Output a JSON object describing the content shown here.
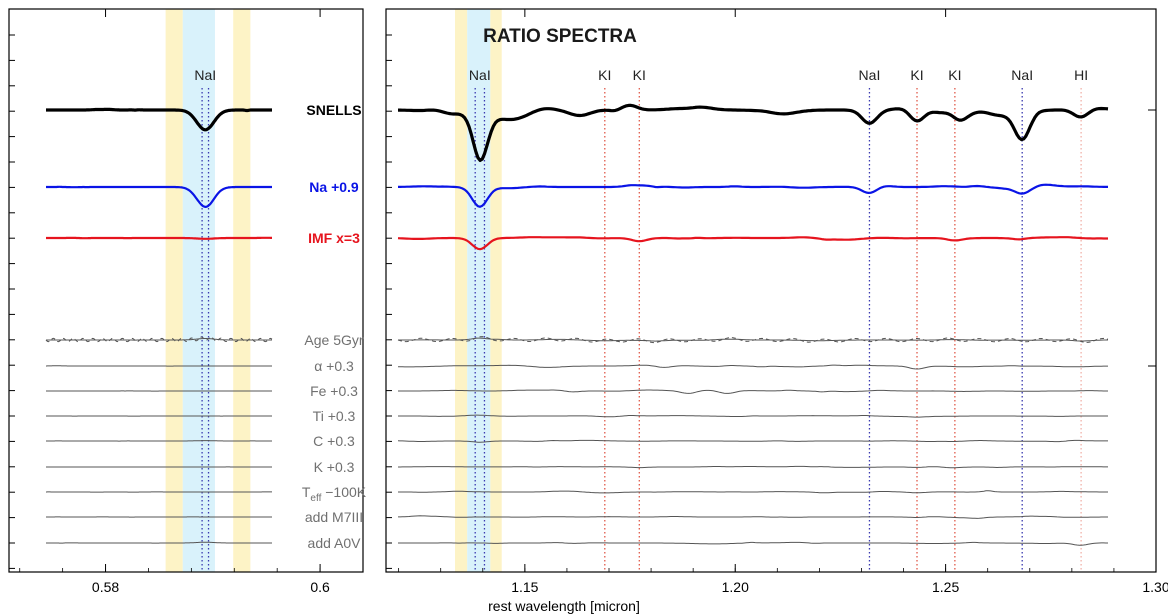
{
  "chart_data": [
    {
      "type": "line",
      "panel": "left",
      "x_ticks": [
        "0.58",
        "0.6"
      ],
      "x_tick_values": [
        0.58,
        0.6
      ],
      "xlim": [
        0.571,
        0.604
      ],
      "shaded_bands": [
        {
          "x": [
            0.5856,
            0.5872
          ],
          "color": "#fdf3c6"
        },
        {
          "x": [
            0.5872,
            0.5902
          ],
          "color": "#d9f2fb"
        },
        {
          "x": [
            0.5919,
            0.5935
          ],
          "color": "#fdf3c6"
        }
      ],
      "line_markers": [
        {
          "x": 0.589,
          "color": "#3a3ab0"
        },
        {
          "x": 0.5896,
          "color": "#3a3ab0"
        }
      ],
      "feature_labels": [
        {
          "text": "NaI",
          "x": 0.5893
        }
      ]
    },
    {
      "type": "line",
      "panel": "right",
      "title": "RATIO SPECTRA",
      "xlabel": "rest wavelength [micron]",
      "x_ticks": [
        "1.15",
        "1.20",
        "1.25",
        "1.30"
      ],
      "x_tick_values": [
        1.15,
        1.2,
        1.25,
        1.3
      ],
      "xlim": [
        1.117,
        1.3
      ],
      "shaded_bands": [
        {
          "x": [
            1.1334,
            1.1363
          ],
          "color": "#fdf3c6"
        },
        {
          "x": [
            1.1363,
            1.1418
          ],
          "color": "#d9f2fb"
        },
        {
          "x": [
            1.1418,
            1.1445
          ],
          "color": "#fdf3c6"
        }
      ],
      "line_markers": [
        {
          "x": 1.1382,
          "color": "#3a3ab0"
        },
        {
          "x": 1.1404,
          "color": "#3a3ab0"
        },
        {
          "x": 1.169,
          "color": "#e05a4a"
        },
        {
          "x": 1.1772,
          "color": "#e05a4a"
        },
        {
          "x": 1.2319,
          "color": "#3a3ab0"
        },
        {
          "x": 1.2432,
          "color": "#e05a4a"
        },
        {
          "x": 1.2522,
          "color": "#e05a4a"
        },
        {
          "x": 1.2682,
          "color": "#3a3ab0"
        },
        {
          "x": 1.2822,
          "color": "#f0b0a8"
        }
      ],
      "feature_labels": [
        {
          "text": "NaI",
          "x": 1.1393
        },
        {
          "text": "KI",
          "x": 1.169
        },
        {
          "text": "KI",
          "x": 1.1772
        },
        {
          "text": "NaI",
          "x": 1.2319
        },
        {
          "text": "KI",
          "x": 1.2432
        },
        {
          "text": "KI",
          "x": 1.2522
        },
        {
          "text": "NaI",
          "x": 1.2682
        },
        {
          "text": "HI",
          "x": 1.2822
        }
      ]
    }
  ],
  "series": [
    {
      "name": "SNELLS",
      "color": "#000000",
      "width": 3.2,
      "left_features": [
        {
          "x": 0.5893,
          "depth": 0.9
        }
      ],
      "right_features": [
        {
          "x": 1.1393,
          "depth": 2.2
        },
        {
          "x": 1.2319,
          "depth": 0.6
        },
        {
          "x": 1.2432,
          "depth": 0.7
        },
        {
          "x": 1.2682,
          "depth": 1.3
        },
        {
          "x": 1.2822,
          "depth": 0.4
        }
      ]
    },
    {
      "name": "Na +0.9",
      "color": "#0a14e6",
      "width": 2.2,
      "left_features": [
        {
          "x": 0.5893,
          "depth": 1.8
        }
      ],
      "right_features": [
        {
          "x": 1.1393,
          "depth": 1.8
        },
        {
          "x": 1.2319,
          "depth": 0.6
        },
        {
          "x": 1.2682,
          "depth": 0.6
        }
      ]
    },
    {
      "name": "IMF x=3",
      "color": "#e6141e",
      "width": 2.2,
      "left_features": [
        {
          "x": 0.5893,
          "depth": 0.1
        }
      ],
      "right_features": [
        {
          "x": 1.1393,
          "depth": 1.4
        },
        {
          "x": 1.1772,
          "depth": 0.4
        },
        {
          "x": 1.2522,
          "depth": 0.3
        }
      ]
    },
    {
      "name": "Age 5Gyr",
      "color": "#555555",
      "width": 1,
      "dashed_overlay": true,
      "left_features": [
        {
          "x": 0.5893,
          "depth": -0.3
        }
      ],
      "right_features": [
        {
          "x": 1.1393,
          "depth": -0.4
        },
        {
          "x": 1.2822,
          "depth": 0.2
        }
      ]
    },
    {
      "name": "α +0.3",
      "color": "#555555",
      "width": 1,
      "left_features": [],
      "right_features": [
        {
          "x": 1.183,
          "depth": 0.4
        },
        {
          "x": 1.2432,
          "depth": 0.6
        }
      ]
    },
    {
      "name": "Fe +0.3",
      "color": "#555555",
      "width": 1,
      "left_features": [],
      "right_features": [
        {
          "x": 1.161,
          "depth": 0.3
        },
        {
          "x": 1.189,
          "depth": 0.6
        },
        {
          "x": 1.198,
          "depth": 0.6
        }
      ]
    },
    {
      "name": "Ti +0.3",
      "color": "#555555",
      "width": 1,
      "left_features": [],
      "right_features": [
        {
          "x": 1.2432,
          "depth": 0.2
        }
      ]
    },
    {
      "name": "C +0.3",
      "color": "#555555",
      "width": 1,
      "left_features": [
        {
          "x": 0.5893,
          "depth": -0.1
        }
      ],
      "right_features": [
        {
          "x": 1.1393,
          "depth": 0.3
        }
      ]
    },
    {
      "name": "K +0.3",
      "color": "#555555",
      "width": 1,
      "left_features": [],
      "right_features": [
        {
          "x": 1.1772,
          "depth": 0.2
        },
        {
          "x": 1.2432,
          "depth": 0.2
        },
        {
          "x": 1.2522,
          "depth": 0.2
        }
      ]
    },
    {
      "name": "T_eff −100K",
      "color": "#555555",
      "width": 1,
      "label_parts": {
        "main": "T",
        "sub": "eff",
        "rest": " −100K"
      },
      "left_features": [],
      "right_features": [
        {
          "x": 1.2432,
          "depth": 0.2
        }
      ]
    },
    {
      "name": "add M7III",
      "color": "#555555",
      "width": 1,
      "left_features": [],
      "right_features": [
        {
          "x": 1.2432,
          "depth": 0.2
        }
      ]
    },
    {
      "name": "add A0V",
      "color": "#555555",
      "width": 1,
      "left_features": [
        {
          "x": 0.5893,
          "depth": -0.2
        }
      ],
      "right_features": [
        {
          "x": 1.2822,
          "depth": 0.7
        }
      ]
    }
  ],
  "colors": {
    "axis": "#000000",
    "label_gray": "#707070",
    "title": "#1a1a1a"
  }
}
